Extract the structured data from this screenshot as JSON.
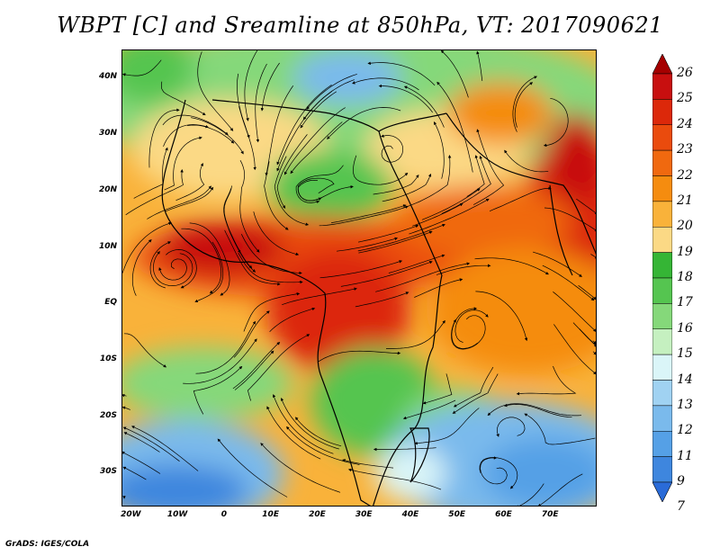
{
  "title": "WBPT [C] and Sreamline at 850hPa, VT: 2017090621",
  "footer": "GrADS: IGES/COLA",
  "map": {
    "lat_labels": [
      "40N",
      "30N",
      "20N",
      "10N",
      "EQ",
      "10S",
      "20S",
      "30S"
    ],
    "lon_labels": [
      "20W",
      "10W",
      "0",
      "10E",
      "20E",
      "30E",
      "40E",
      "50E",
      "60E",
      "70E"
    ],
    "lat_values": [
      40,
      30,
      20,
      10,
      0,
      -10,
      -20,
      -30
    ],
    "lon_values": [
      -20,
      -10,
      0,
      10,
      20,
      30,
      40,
      50,
      60,
      70
    ],
    "lat_range": [
      -36,
      45
    ],
    "lon_range": [
      -22,
      80
    ]
  },
  "colorbar": {
    "levels": [
      "26",
      "25",
      "24",
      "23",
      "22",
      "21",
      "20",
      "19",
      "18",
      "17",
      "16",
      "15",
      "14",
      "13",
      "12",
      "11",
      "9",
      "7"
    ],
    "colors": [
      "#a50000",
      "#c80f0f",
      "#dc280a",
      "#ea4b0d",
      "#f0690f",
      "#f58c0f",
      "#f9b23a",
      "#fbd985",
      "#35b535",
      "#55c550",
      "#85d87a",
      "#c5f0c0",
      "#daf5f8",
      "#a0d2f2",
      "#7abaec",
      "#55a0e6",
      "#3e86de",
      "#2a6bd8"
    ]
  }
}
